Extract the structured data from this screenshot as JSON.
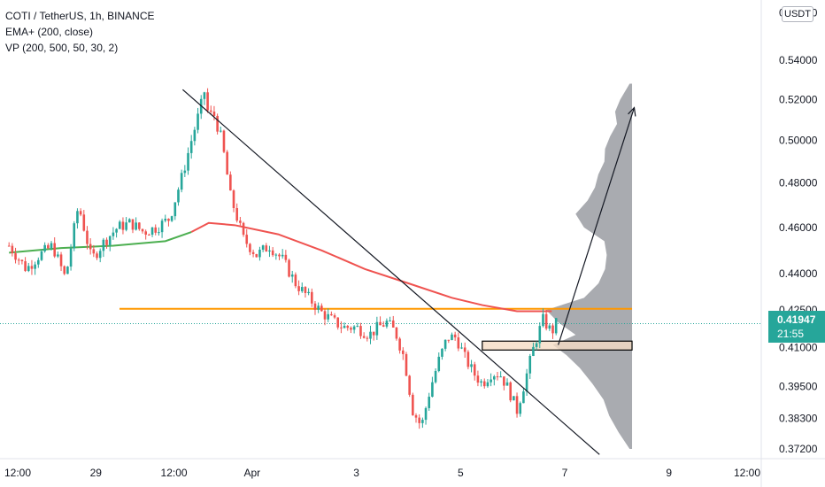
{
  "legend": {
    "symbol": "COTI / TetherUS, 1h, BINANCE",
    "ema": "EMA+ (200, close)",
    "vp": "VP (200, 500, 50, 30, 2)"
  },
  "currency_button": "USDT",
  "last_price": {
    "price": "0.41947",
    "countdown": "21:55"
  },
  "colors": {
    "up": "#26a69a",
    "down": "#ef5350",
    "ema_below": "#4caf50",
    "ema_above": "#ef5350",
    "horizontal_level": "#ff9800",
    "volume_profile": "#8c8f96",
    "value_area_box": "#f5dcc4"
  },
  "chart_data": {
    "type": "candlestick",
    "symbol": "COTI / TetherUS",
    "timeframe": "1h",
    "exchange": "BINANCE",
    "y_axis": {
      "scale": "log",
      "ticks": [
        "0.54000",
        "0.52000",
        "0.50000",
        "0.48000",
        "0.46000",
        "0.44000",
        "0.42500",
        "0.41000",
        "0.39500",
        "0.38300",
        "0.37200"
      ],
      "range": [
        0.366,
        0.565
      ]
    },
    "x_axis": {
      "ticks": [
        "12:00",
        "29",
        "12:00",
        "Apr",
        "3",
        "5",
        "7",
        "9",
        "12:00"
      ],
      "hours_from_first_tick": [
        0,
        36,
        72,
        108,
        156,
        204,
        252,
        300,
        336
      ]
    },
    "price_path": {
      "hours": [
        -4,
        4,
        10,
        16,
        22,
        28,
        34,
        40,
        46,
        52,
        58,
        64,
        70,
        76,
        80,
        84,
        86,
        88,
        90,
        94,
        98,
        104,
        110,
        116,
        122,
        128,
        134,
        140,
        146,
        150,
        156,
        162,
        166,
        170,
        174,
        178,
        182,
        186,
        190,
        194,
        198,
        202,
        206,
        210,
        214,
        218,
        222,
        226,
        230,
        234,
        238,
        242,
        246,
        248
      ],
      "close": [
        0.452,
        0.442,
        0.448,
        0.452,
        0.438,
        0.47,
        0.446,
        0.454,
        0.46,
        0.462,
        0.458,
        0.46,
        0.464,
        0.484,
        0.5,
        0.515,
        0.524,
        0.511,
        0.514,
        0.5,
        0.474,
        0.455,
        0.448,
        0.452,
        0.446,
        0.436,
        0.43,
        0.424,
        0.42,
        0.418,
        0.418,
        0.415,
        0.418,
        0.42,
        0.416,
        0.406,
        0.386,
        0.38,
        0.394,
        0.405,
        0.414,
        0.414,
        0.406,
        0.4,
        0.396,
        0.4,
        0.4,
        0.394,
        0.386,
        0.398,
        0.411,
        0.421,
        0.416,
        0.4195
      ]
    },
    "ema_200": {
      "hours": [
        -4,
        20,
        44,
        68,
        80,
        88,
        100,
        120,
        140,
        160,
        180,
        200,
        214,
        230,
        246
      ],
      "values": [
        0.449,
        0.451,
        0.452,
        0.454,
        0.458,
        0.462,
        0.461,
        0.457,
        0.45,
        0.442,
        0.436,
        0.43,
        0.427,
        0.4245,
        0.4245
      ]
    },
    "annotations": {
      "horizontal_level": 0.4255,
      "downtrend_line": {
        "from": {
          "hour": 76,
          "price": 0.525
        },
        "to": {
          "hour": 268,
          "price": 0.37
        }
      },
      "projection_arrow": {
        "from": {
          "hour": 249,
          "price": 0.411
        },
        "to": {
          "hour": 284,
          "price": 0.516
        }
      },
      "box": {
        "hour_start": 214,
        "hour_end": 283,
        "price_low": 0.409,
        "price_high": 0.4125
      },
      "last_price_line": 0.41947
    },
    "volume_profile": {
      "anchor_hour": 283,
      "price_levels": [
        0.372,
        0.378,
        0.384,
        0.39,
        0.396,
        0.402,
        0.407,
        0.411,
        0.415,
        0.42,
        0.425,
        0.43,
        0.436,
        0.442,
        0.448,
        0.454,
        0.46,
        0.466,
        0.472,
        0.478,
        0.484,
        0.49,
        0.496,
        0.502,
        0.508,
        0.514,
        0.52,
        0.528
      ],
      "relative_volume": [
        0.05,
        0.14,
        0.25,
        0.36,
        0.45,
        0.6,
        0.8,
        0.92,
        0.65,
        0.9,
        1.0,
        0.55,
        0.42,
        0.3,
        0.28,
        0.35,
        0.55,
        0.65,
        0.55,
        0.42,
        0.38,
        0.35,
        0.3,
        0.24,
        0.2,
        0.18,
        0.12,
        0.05
      ]
    }
  }
}
